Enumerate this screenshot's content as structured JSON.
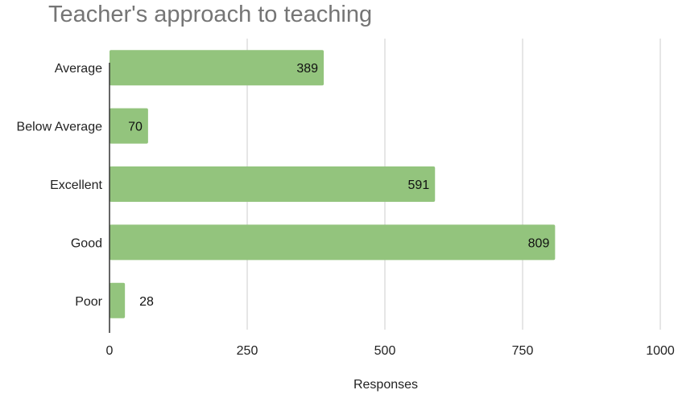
{
  "chart_data": {
    "type": "bar",
    "orientation": "horizontal",
    "title": "Teacher's approach to teaching",
    "xlabel": "Responses",
    "ylabel": "",
    "categories": [
      "Average",
      "Below Average",
      "Excellent",
      "Good",
      "Poor"
    ],
    "values": [
      389,
      70,
      591,
      809,
      28
    ],
    "xlim": [
      0,
      1000
    ],
    "xticks": [
      0,
      250,
      500,
      750,
      1000
    ],
    "grid": true,
    "legend": "none",
    "bar_color": "#93c47d"
  }
}
